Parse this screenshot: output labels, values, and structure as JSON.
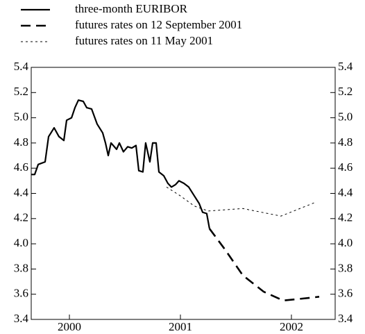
{
  "chart_data": {
    "type": "line",
    "series": [
      {
        "name": "three-month EURIBOR",
        "color": "#000000",
        "style": "solid",
        "x": [
          1999.656,
          1999.687,
          1999.719,
          1999.781,
          1999.812,
          1999.862,
          1999.906,
          1999.95,
          1999.975,
          2000.019,
          2000.05,
          2000.081,
          2000.125,
          2000.156,
          2000.2,
          2000.25,
          2000.3,
          2000.325,
          2000.35,
          2000.375,
          2000.425,
          2000.45,
          2000.487,
          2000.525,
          2000.562,
          2000.6,
          2000.625,
          2000.662,
          2000.687,
          2000.725,
          2000.75,
          2000.781,
          2000.806,
          2000.85,
          2000.887,
          2000.919,
          2000.956,
          2000.987,
          2001.031,
          2001.075,
          2001.125,
          2001.169,
          2001.2,
          2001.237,
          2001.262
        ],
        "values": [
          4.55,
          4.55,
          4.63,
          4.65,
          4.85,
          4.92,
          4.85,
          4.82,
          4.98,
          5.0,
          5.08,
          5.14,
          5.13,
          5.08,
          5.07,
          4.95,
          4.88,
          4.8,
          4.7,
          4.8,
          4.75,
          4.8,
          4.73,
          4.77,
          4.76,
          4.78,
          4.58,
          4.57,
          4.8,
          4.65,
          4.8,
          4.8,
          4.57,
          4.54,
          4.48,
          4.45,
          4.47,
          4.5,
          4.48,
          4.45,
          4.38,
          4.32,
          4.25,
          4.24,
          4.12
        ]
      },
      {
        "name": "futures rates on 12 September 2001",
        "color": "#000000",
        "style": "dashed",
        "x": [
          2001.262,
          2001.406,
          2001.562,
          2001.75,
          2001.925,
          2002.156,
          2002.25
        ],
        "values": [
          4.12,
          3.95,
          3.75,
          3.62,
          3.55,
          3.57,
          3.58
        ]
      },
      {
        "name": "futures rates on 11 May 2001",
        "color": "#000000",
        "style": "dotted",
        "x": [
          2000.875,
          2001.0,
          2001.125,
          2001.25,
          2001.562,
          2001.906,
          2002.219
        ],
        "values": [
          4.45,
          4.38,
          4.3,
          4.26,
          4.28,
          4.22,
          4.33
        ]
      }
    ],
    "xlim": [
      1999.656,
      2002.394
    ],
    "xticks": [
      2000,
      2001,
      2002
    ],
    "ylim": [
      3.4,
      5.4
    ],
    "yticks": [
      3.4,
      3.6,
      3.8,
      {
        "value": 4,
        "label": "4.0"
      },
      4.2,
      4.4,
      4.6,
      4.8,
      {
        "value": 5,
        "label": "5.0"
      },
      5.2,
      5.4
    ],
    "right_axis": true,
    "legend": "top-left"
  }
}
